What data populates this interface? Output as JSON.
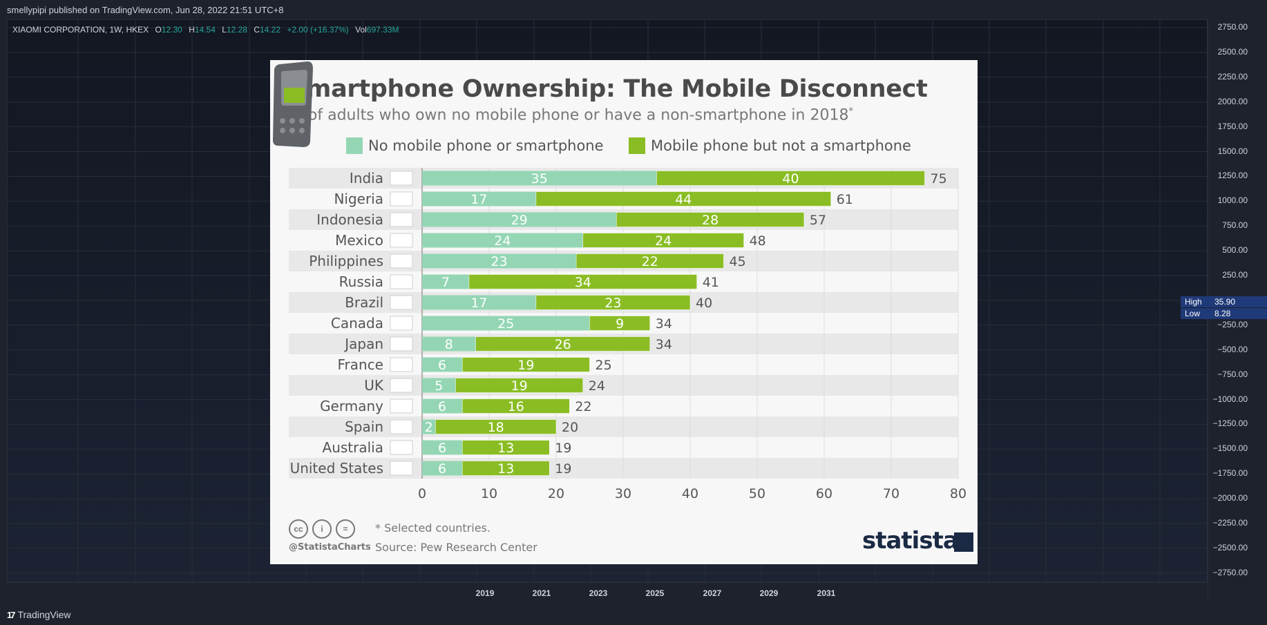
{
  "header": {
    "published_text": "smellypipi published on TradingView.com, Jun 28, 2022 21:51 UTC+8"
  },
  "ohlc": {
    "symbol": "XIAOMI CORPORATION, 1W, HKEX",
    "o_label": "O",
    "o_value": "12.30",
    "h_label": "H",
    "h_value": "14.54",
    "l_label": "L",
    "l_value": "12.28",
    "c_label": "C",
    "c_value": "14.22",
    "change": "+2.00 (+16.37%)",
    "vol_label": "Vol",
    "vol_value": "697.33M"
  },
  "price_axis": {
    "labels": [
      "2750.00",
      "2500.00",
      "2250.00",
      "2000.00",
      "1750.00",
      "1500.00",
      "1250.00",
      "1000.00",
      "750.00",
      "500.00",
      "250.00",
      "−250.00",
      "−500.00",
      "−750.00",
      "−1000.00",
      "−1250.00",
      "−1500.00",
      "−1750.00",
      "−2000.00",
      "−2250.00",
      "−2500.00",
      "−2750.00"
    ],
    "high_label": "High",
    "high_value": "35.90",
    "low_label": "Low",
    "low_value": "8.28"
  },
  "time_axis": {
    "labels": [
      "2019",
      "2021",
      "2023",
      "2025",
      "2027",
      "2029",
      "2031"
    ]
  },
  "footer": {
    "brand": "TradingView",
    "brand_mark": "17"
  },
  "colors": {
    "light_green": "#94d6b4",
    "dark_green": "#8abd24",
    "stripe": "#e8e8e8"
  },
  "chart_data": {
    "type": "bar",
    "orientation": "horizontal-stacked",
    "title": "Smartphone Ownership: The Mobile Disconnect",
    "subtitle": "% of adults who own no mobile phone or have a non-smartphone in 2018",
    "subtitle_mark": "*",
    "categories": [
      "India",
      "Nigeria",
      "Indonesia",
      "Mexico",
      "Philippines",
      "Russia",
      "Brazil",
      "Canada",
      "Japan",
      "France",
      "UK",
      "Germany",
      "Spain",
      "Australia",
      "United States"
    ],
    "series": [
      {
        "name": "No mobile phone or smartphone",
        "color": "#94d6b4",
        "values": [
          35,
          17,
          29,
          24,
          23,
          7,
          17,
          25,
          8,
          6,
          5,
          6,
          2,
          6,
          6
        ]
      },
      {
        "name": "Mobile phone but not a smartphone",
        "color": "#8abd24",
        "values": [
          40,
          44,
          28,
          24,
          22,
          34,
          23,
          9,
          26,
          19,
          19,
          16,
          18,
          13,
          13
        ]
      }
    ],
    "totals": [
      75,
      61,
      57,
      48,
      45,
      41,
      40,
      34,
      34,
      25,
      24,
      22,
      20,
      19,
      19
    ],
    "x_ticks": [
      "0",
      "10",
      "20",
      "30",
      "40",
      "50",
      "60",
      "70",
      "80"
    ],
    "xlim": [
      0,
      80
    ],
    "grid": true,
    "legend_position": "top",
    "note": "* Selected countries.",
    "source": "Source: Pew Research Center",
    "handle": "@StatistaCharts",
    "cc_icons": [
      "cc",
      "i",
      "="
    ],
    "brand": "statista"
  }
}
